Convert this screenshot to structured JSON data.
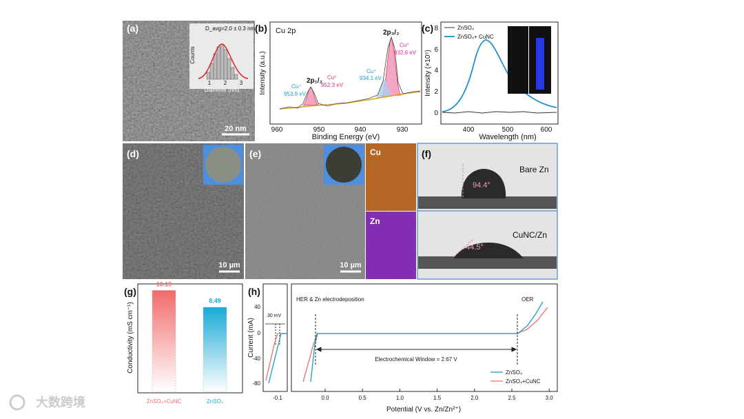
{
  "watermark": "大数跨境",
  "panel_a": {
    "label": "(a)",
    "inset_annotation": "D_avg=2.0 ± 0.3 nm",
    "inset_y_label": "Counts",
    "inset_x_label": "Diameter (nm)",
    "inset_xticks": [
      "1",
      "2",
      "3"
    ],
    "scale_bar": "20 nm"
  },
  "panel_b": {
    "label": "(b)",
    "title": "Cu 2p",
    "y_label": "Intensity (a.u.)",
    "x_label": "Binding Energy (eV)",
    "xticks": [
      "960",
      "950",
      "940",
      "930"
    ],
    "annotations": [
      "Cu⁺",
      "953.9 eV",
      "2p₁/₂",
      "Cu⁰",
      "952.3 eV",
      "Cu⁺",
      "934.1 eV",
      "2p₃/₂",
      "Cu⁰",
      "932.6 eV"
    ]
  },
  "panel_c": {
    "label": "(c)",
    "y_label": "Intensity (×10⁵)",
    "x_label": "Wavelength (nm)",
    "yticks": [
      "0",
      "2",
      "4",
      "6",
      "8"
    ],
    "xticks": [
      "400",
      "500",
      "600"
    ],
    "legend": [
      "ZnSO₄",
      "ZnSO₄+ CuNC"
    ]
  },
  "panel_d": {
    "label": "(d)",
    "scale_bar": "10 µm"
  },
  "panel_e": {
    "label": "(e)",
    "scale_bar": "10 µm",
    "map_labels": [
      "Cu",
      "Zn"
    ]
  },
  "panel_f": {
    "label": "(f)",
    "top_label": "Bare Zn",
    "top_angle": "94.4°",
    "bottom_label": "CuNC/Zn",
    "bottom_angle": "44.5°"
  },
  "panel_g": {
    "label": "(g)",
    "y_label": "Conductivity (mS cm⁻¹)",
    "categories": [
      "ZnSO₄+CuNC",
      "ZnSO₄"
    ],
    "values": [
      10.19,
      8.49
    ],
    "colors": [
      "#f26b6b",
      "#1aa9d6"
    ]
  },
  "panel_h": {
    "label": "(h)",
    "y_label": "Current (mA)",
    "x_label": "Potential (V vs. Zn/Zn²⁺)",
    "yticks": [
      "40",
      "0",
      "-40",
      "-80"
    ],
    "inset_xticks": [
      "-0.1"
    ],
    "inset_annotation": "30 mV",
    "xticks": [
      "0.0",
      "0.5",
      "1.0",
      "1.5",
      "2.0",
      "2.5",
      "3.0"
    ],
    "left_annotation": "HER & Zn electrodeposition",
    "right_annotation": "OER",
    "window": "Electrochemical Window = 2.67 V",
    "legend": [
      "ZnSO₄",
      "ZnSO₄+CuNC"
    ]
  }
}
